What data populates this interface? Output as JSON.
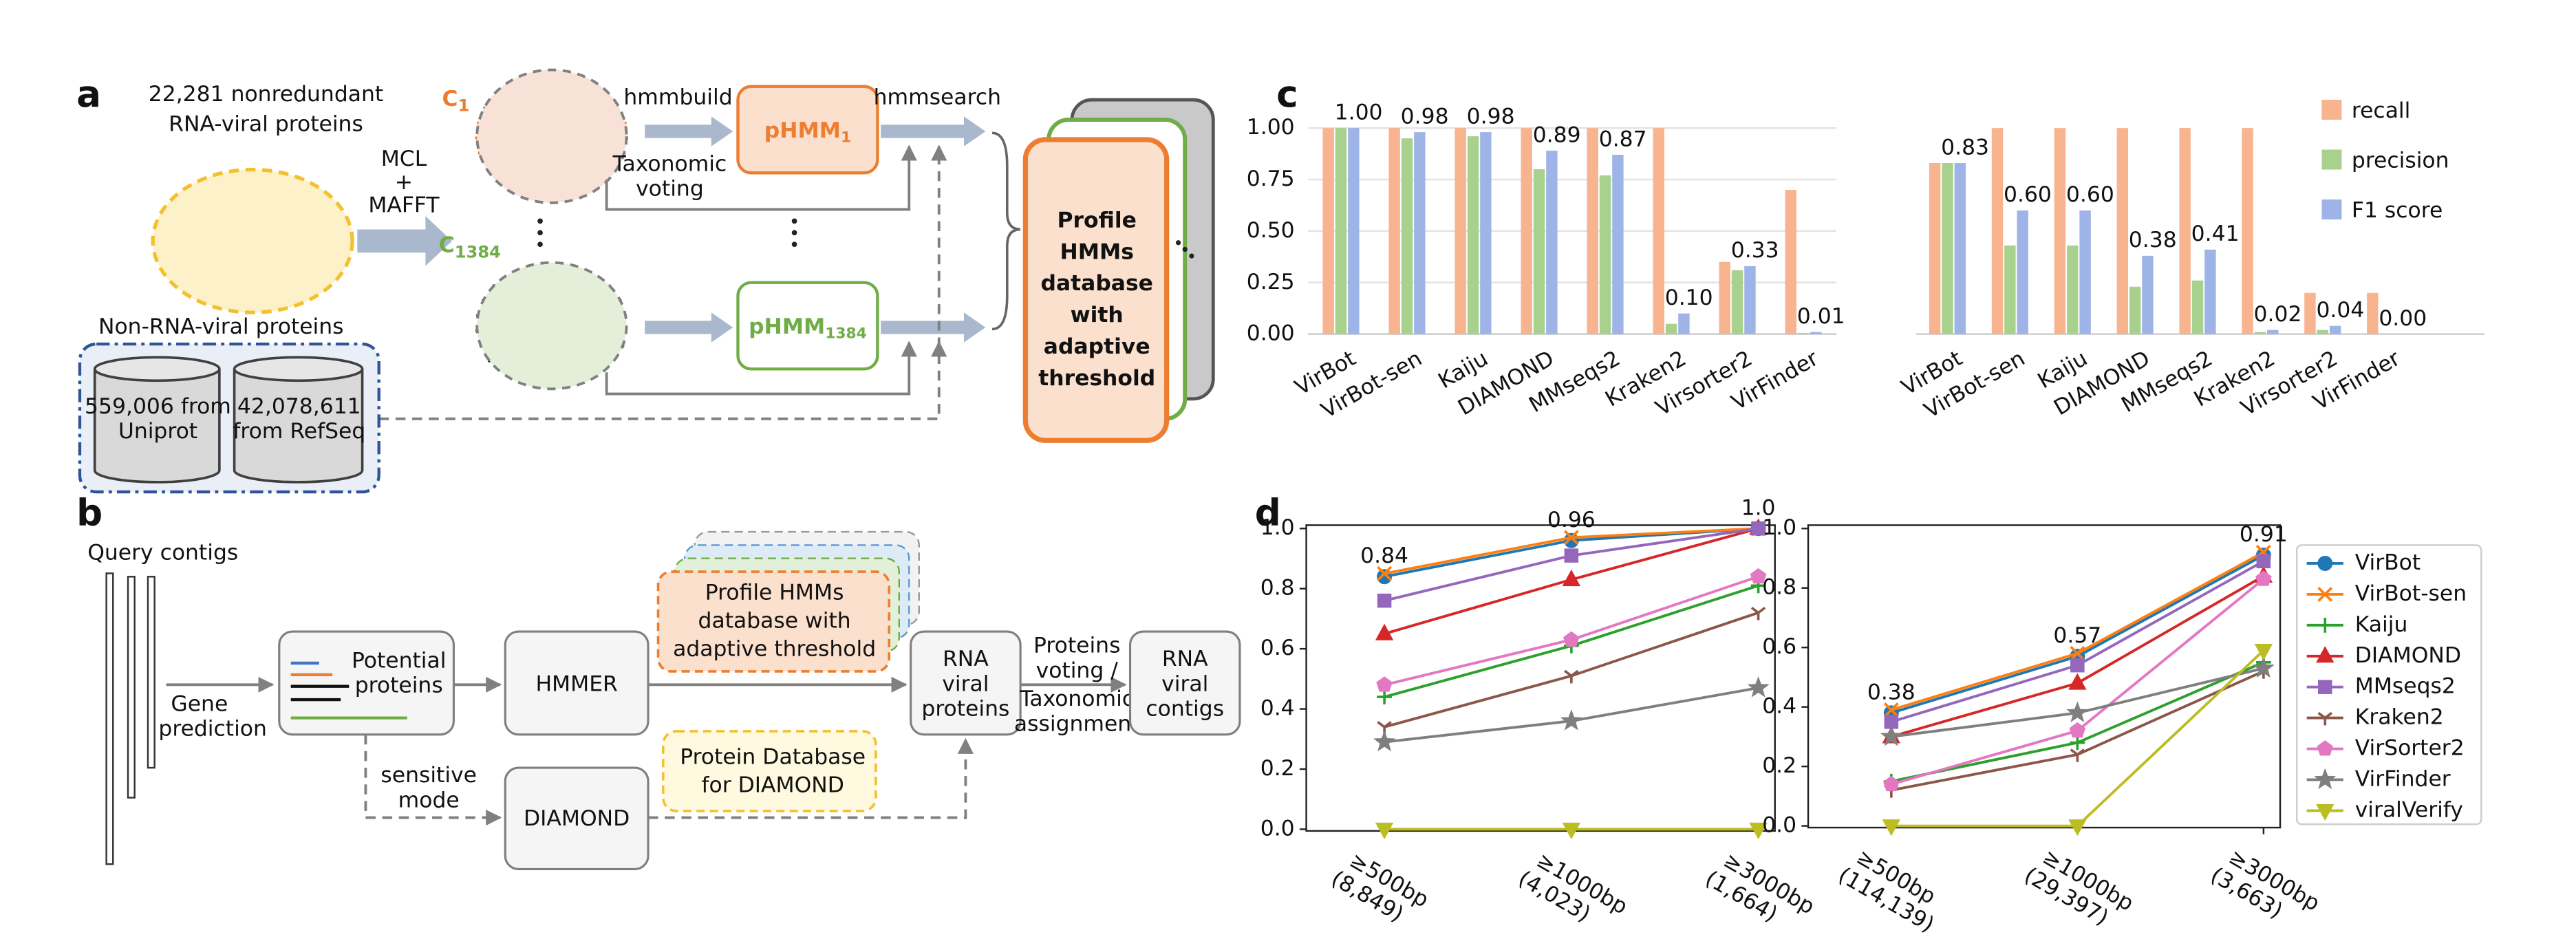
{
  "panel_labels": [
    "a",
    "b",
    "c",
    "d"
  ],
  "panel_a": {
    "input": [
      "22,281 nonredundant",
      "RNA-viral proteins"
    ],
    "clustering": [
      "MCL",
      "+",
      "MAFFT"
    ],
    "clusters": [
      {
        "base": "C",
        "sub": "1"
      },
      {
        "base": "C",
        "sub": "1384"
      }
    ],
    "build": "hmmbuild",
    "voting": [
      "Taxonomic",
      "voting"
    ],
    "models": [
      {
        "base": "pHMM",
        "sub": "1"
      },
      {
        "base": "pHMM",
        "sub": "1384"
      }
    ],
    "search": "hmmsearch",
    "database": [
      "Profile",
      "HMMs",
      "database",
      "with",
      "adaptive",
      "threshold"
    ],
    "negatives": {
      "title": "Non-RNA-viral proteins",
      "sources": [
        [
          "559,006 from",
          "Uniprot"
        ],
        [
          "42,078,611",
          "from RefSeq"
        ]
      ]
    }
  },
  "panel_b": {
    "query": "Query contigs",
    "gene": [
      "Gene",
      "prediction"
    ],
    "potential": [
      "Potential",
      "proteins"
    ],
    "hmmer": "HMMER",
    "database": [
      "Profile HMMs",
      "database with",
      "adaptive threshold"
    ],
    "sensitive": [
      "sensitive",
      "mode"
    ],
    "diamond": "DIAMOND",
    "diamond_db": [
      "Protein Database",
      "for DIAMOND"
    ],
    "rna_proteins": [
      "RNA",
      "viral",
      "proteins"
    ],
    "assignment": [
      "Proteins",
      "voting /",
      "Taxonomic",
      "assignment"
    ],
    "rna_contigs": [
      "RNA",
      "viral",
      "contigs"
    ]
  },
  "chart_data": [
    {
      "type": "bar",
      "categories": [
        "VirBot",
        "VirBot-sen",
        "Kaiju",
        "DIAMOND",
        "MMseqs2",
        "Kraken2",
        "Virsorter2",
        "VirFinder"
      ],
      "series": [
        {
          "color": "#f7b48e",
          "values": [
            1.0,
            1.0,
            1.0,
            1.0,
            1.0,
            1.0,
            0.35,
            0.7
          ]
        },
        {
          "color": "#a9d18e",
          "values": [
            1.0,
            0.95,
            0.96,
            0.8,
            0.77,
            0.05,
            0.31,
            0.005
          ]
        },
        {
          "color": "#9fb4e6",
          "values": [
            1.0,
            0.98,
            0.98,
            0.89,
            0.87,
            0.1,
            0.33,
            0.01
          ],
          "value_labels": [
            "1.00",
            "0.98",
            "0.98",
            "0.89",
            "0.87",
            "0.10",
            "0.33",
            "0.01"
          ]
        }
      ],
      "ylim": [
        0,
        1
      ],
      "yticks": [
        {
          "value": 0,
          "label": "0.00"
        },
        0.25,
        {
          "value": 0.5,
          "label": "0.50"
        },
        0.75,
        {
          "value": 1,
          "label": "1.00"
        }
      ],
      "grid": true
    },
    {
      "type": "bar",
      "categories": [
        "VirBot",
        "VirBot-sen",
        "Kaiju",
        "DIAMOND",
        "MMseqs2",
        "Kraken2",
        "Virsorter2",
        "VirFinder"
      ],
      "series": [
        {
          "name": "recall",
          "color": "#f7b48e",
          "values": [
            0.83,
            1.0,
            1.0,
            1.0,
            1.0,
            1.0,
            0.2,
            0.2
          ]
        },
        {
          "name": "precision",
          "color": "#a9d18e",
          "values": [
            0.83,
            0.43,
            0.43,
            0.23,
            0.26,
            0.01,
            0.02,
            0.0
          ]
        },
        {
          "name": "F1 score",
          "color": "#9fb4e6",
          "values": [
            0.83,
            0.6,
            0.6,
            0.38,
            0.41,
            0.02,
            0.04,
            0.0
          ],
          "value_labels": [
            "0.83",
            "0.60",
            "0.60",
            "0.38",
            "0.41",
            "0.02",
            "0.04",
            "0.00"
          ]
        }
      ],
      "ylim": [
        0,
        1
      ],
      "legend": "upper right"
    },
    {
      "type": "line",
      "categories": [
        [
          "≥500bp",
          "(8,849)"
        ],
        [
          "≥1000bp",
          "(4,023)"
        ],
        [
          "≥3000bp",
          "(1,664)"
        ]
      ],
      "series": [
        {
          "color": "#1f77b4",
          "marker": "o",
          "values": [
            0.84,
            0.96,
            1.0
          ],
          "value_labels": [
            "0.84",
            "0.96",
            "1.0"
          ]
        },
        {
          "color": "#ff7f0e",
          "marker": "x",
          "values": [
            0.85,
            0.97,
            1.0
          ]
        },
        {
          "color": "#2ca02c",
          "marker": "+",
          "values": [
            0.44,
            0.61,
            0.81
          ]
        },
        {
          "color": "#d62728",
          "marker": "^",
          "values": [
            0.65,
            0.83,
            1.0
          ]
        },
        {
          "color": "#9467bd",
          "marker": "s",
          "values": [
            0.76,
            0.91,
            1.0
          ]
        },
        {
          "color": "#8c564b",
          "marker": "1",
          "values": [
            0.34,
            0.51,
            0.72
          ]
        },
        {
          "color": "#e377c2",
          "marker": "p",
          "values": [
            0.48,
            0.63,
            0.84
          ]
        },
        {
          "color": "#7f7f7f",
          "marker": "*",
          "values": [
            0.29,
            0.36,
            0.47
          ]
        },
        {
          "color": "#bcbd22",
          "marker": "v",
          "values": [
            0,
            0,
            0
          ]
        }
      ],
      "ylim": [
        0,
        1
      ],
      "yticks": [
        {
          "value": 0,
          "label": "0.0"
        },
        0.2,
        0.4,
        0.6,
        0.8,
        {
          "value": 1,
          "label": "1.0"
        }
      ]
    },
    {
      "type": "line",
      "categories": [
        [
          "≥500bp",
          "(114,139)"
        ],
        [
          "≥1000bp",
          "(29,397)"
        ],
        [
          "≥3000bp",
          "(3,663)"
        ]
      ],
      "series": [
        {
          "name": "VirBot",
          "color": "#1f77b4",
          "marker": "o",
          "values": [
            0.38,
            0.57,
            0.91
          ],
          "value_labels": [
            "0.38",
            "0.57",
            "0.91"
          ]
        },
        {
          "name": "VirBot-sen",
          "color": "#ff7f0e",
          "marker": "x",
          "values": [
            0.39,
            0.58,
            0.92
          ]
        },
        {
          "name": "Kaiju",
          "color": "#2ca02c",
          "marker": "+",
          "values": [
            0.15,
            0.28,
            0.55
          ]
        },
        {
          "name": "DIAMOND",
          "color": "#d62728",
          "marker": "^",
          "values": [
            0.3,
            0.48,
            0.84
          ]
        },
        {
          "name": "MMseqs2",
          "color": "#9467bd",
          "marker": "s",
          "values": [
            0.35,
            0.54,
            0.89
          ]
        },
        {
          "name": "Kraken2",
          "color": "#8c564b",
          "marker": "1",
          "values": [
            0.12,
            0.24,
            0.52
          ]
        },
        {
          "name": "VirSorter2",
          "color": "#e377c2",
          "marker": "p",
          "values": [
            0.14,
            0.32,
            0.83
          ]
        },
        {
          "name": "VirFinder",
          "color": "#7f7f7f",
          "marker": "*",
          "values": [
            0.3,
            0.38,
            0.53
          ]
        },
        {
          "name": "viralVerify",
          "color": "#bcbd22",
          "marker": "v",
          "values": [
            0,
            0,
            0.59
          ]
        }
      ],
      "ylim": [
        0,
        1
      ],
      "yticks": [
        {
          "value": 0,
          "label": "0.0"
        },
        0.2,
        0.4,
        0.6,
        0.8,
        {
          "value": 1,
          "label": "1.0"
        }
      ],
      "legend": "outside right"
    }
  ]
}
